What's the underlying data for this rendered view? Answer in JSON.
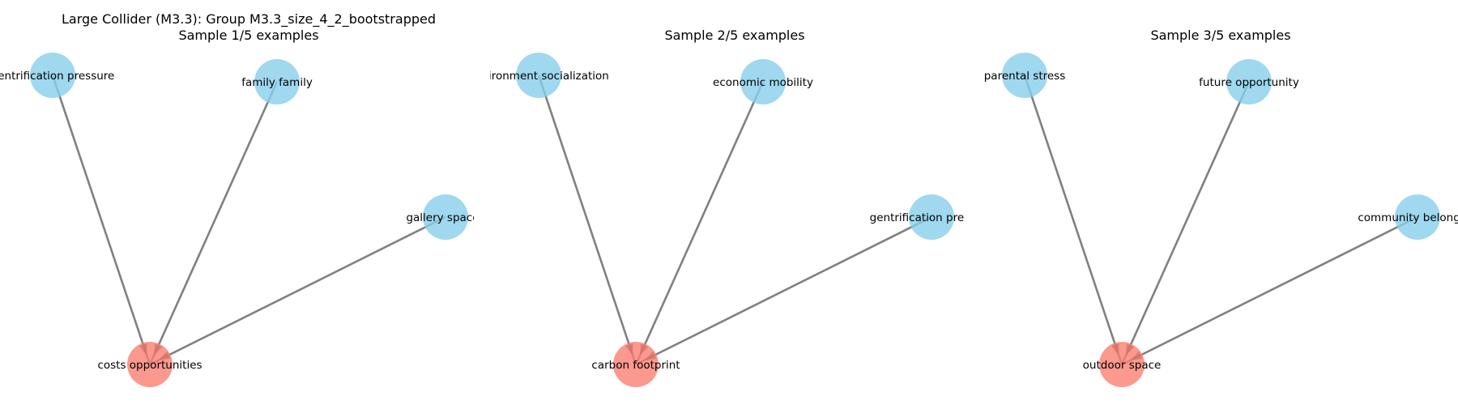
{
  "figure": {
    "title_line1": "Large Collider (M3.3): Group M3.3_size_4_2_bootstrapped"
  },
  "colors": {
    "cause_node": "#87ceeb",
    "effect_node": "#fa8072",
    "edge": "#808080"
  },
  "panels": [
    {
      "title": "Sample 1/5 examples",
      "causes": [
        "gentrification pressure",
        "family family",
        "gallery spaces"
      ],
      "effect": "costs opportunities"
    },
    {
      "title": "Sample 2/5 examples",
      "causes": [
        "environment socialization",
        "economic mobility",
        "gentrification pressure"
      ],
      "effect": "carbon footprint"
    },
    {
      "title": "Sample 3/5 examples",
      "causes": [
        "parental stress",
        "future opportunity",
        "community belonging"
      ],
      "effect": "outdoor space"
    }
  ]
}
